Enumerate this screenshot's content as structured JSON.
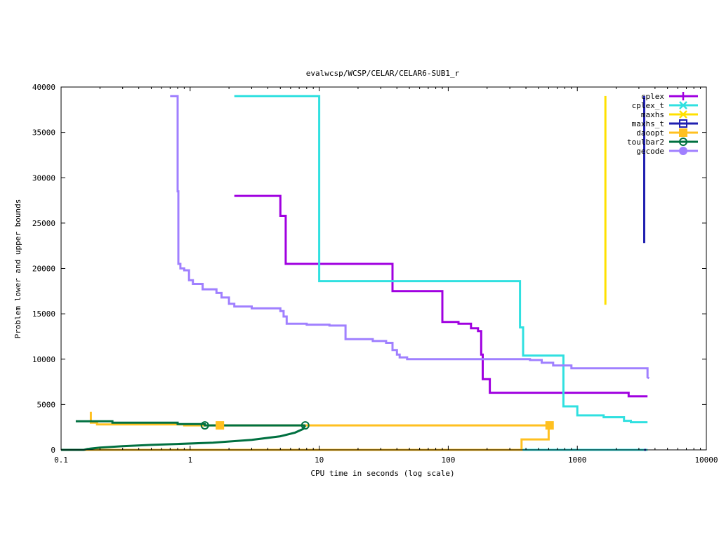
{
  "chart_data": {
    "type": "line",
    "title": "evalwcsp/WCSP/CELAR/CELAR6-SUB1_r",
    "xlabel": "CPU time in seconds (log scale)",
    "ylabel": "Problem lower and upper bounds",
    "xscale": "log",
    "xlim": [
      0.1,
      10000
    ],
    "ylim": [
      0,
      40000
    ],
    "xticks": [
      0.1,
      1,
      10,
      100,
      1000,
      10000
    ],
    "xtick_labels": [
      "0.1",
      "1",
      "10",
      "100",
      "1000",
      "10000"
    ],
    "yticks": [
      0,
      5000,
      10000,
      15000,
      20000,
      25000,
      30000,
      35000,
      40000
    ],
    "ytick_labels": [
      "0",
      "5000",
      "10000",
      "15000",
      "20000",
      "25000",
      "30000",
      "35000",
      "40000"
    ],
    "grid": false,
    "legend_position": "top-right",
    "series": [
      {
        "name": "cplex",
        "color": "#a000e0",
        "marker": "plus",
        "points": [
          [
            2.2,
            28000
          ],
          [
            5.0,
            28000
          ],
          [
            5.0,
            25800
          ],
          [
            5.5,
            25800
          ],
          [
            5.5,
            20500
          ],
          [
            37,
            20500
          ],
          [
            37,
            17500
          ],
          [
            90,
            17500
          ],
          [
            90,
            14100
          ],
          [
            120,
            14100
          ],
          [
            120,
            13900
          ],
          [
            150,
            13900
          ],
          [
            150,
            13400
          ],
          [
            170,
            13400
          ],
          [
            170,
            13100
          ],
          [
            180,
            13100
          ],
          [
            180,
            10500
          ],
          [
            185,
            10500
          ],
          [
            185,
            7800
          ],
          [
            210,
            7800
          ],
          [
            210,
            6300
          ],
          [
            2500,
            6300
          ],
          [
            2500,
            5900
          ],
          [
            3500,
            5900
          ]
        ],
        "markers": []
      },
      {
        "name": "cplex_t",
        "color": "#30e0e0",
        "marker": "cross",
        "points": [
          [
            2.2,
            39000
          ],
          [
            10,
            39000
          ],
          [
            10,
            18600
          ],
          [
            360,
            18600
          ],
          [
            360,
            13500
          ],
          [
            380,
            13500
          ],
          [
            380,
            10400
          ],
          [
            780,
            10400
          ],
          [
            780,
            4800
          ],
          [
            1000,
            4800
          ],
          [
            1000,
            3800
          ],
          [
            1600,
            3800
          ],
          [
            1600,
            3600
          ],
          [
            2300,
            3600
          ],
          [
            2300,
            3200
          ],
          [
            2600,
            3200
          ],
          [
            2600,
            3050
          ],
          [
            3500,
            3050
          ]
        ],
        "lower": [
          [
            2.2,
            0
          ],
          [
            3500,
            0
          ]
        ],
        "markers": []
      },
      {
        "name": "maxhs",
        "color": "#ffe000",
        "marker": "cross",
        "points": [
          [
            1650,
            39000
          ],
          [
            1650,
            16000
          ]
        ],
        "markers": []
      },
      {
        "name": "maxhs_t",
        "color": "#2020b0",
        "marker": "square",
        "points": [
          [
            3300,
            39000
          ],
          [
            3300,
            22800
          ]
        ],
        "lower": [
          [
            3300,
            0
          ],
          [
            3400,
            0
          ]
        ],
        "markers": []
      },
      {
        "name": "daoopt",
        "color": "#ffc020",
        "marker": "filled-square",
        "points": [
          [
            0.17,
            4200
          ],
          [
            0.17,
            3000
          ],
          [
            0.19,
            3000
          ],
          [
            0.19,
            2800
          ],
          [
            0.9,
            2800
          ],
          [
            0.9,
            2700
          ],
          [
            610,
            2700
          ]
        ],
        "lower": [
          [
            0.1,
            0
          ],
          [
            370,
            0
          ],
          [
            370,
            1150
          ],
          [
            600,
            1150
          ],
          [
            600,
            2700
          ]
        ],
        "markers": [
          [
            1.7,
            2700
          ],
          [
            610,
            2700
          ]
        ]
      },
      {
        "name": "toulbar2",
        "color": "#007040",
        "marker": "circle",
        "points": [
          [
            0.13,
            3150
          ],
          [
            0.25,
            3150
          ],
          [
            0.25,
            3000
          ],
          [
            0.8,
            3000
          ],
          [
            0.8,
            2850
          ],
          [
            1.3,
            2850
          ],
          [
            1.3,
            2700
          ],
          [
            7.8,
            2700
          ]
        ],
        "lower": [
          [
            0.1,
            0
          ],
          [
            0.15,
            0
          ],
          [
            0.16,
            100
          ],
          [
            0.2,
            250
          ],
          [
            0.3,
            400
          ],
          [
            0.5,
            550
          ],
          [
            0.8,
            650
          ],
          [
            1.5,
            800
          ],
          [
            3,
            1100
          ],
          [
            5,
            1500
          ],
          [
            6.5,
            1900
          ],
          [
            7.5,
            2300
          ],
          [
            7.8,
            2700
          ]
        ],
        "markers": [
          [
            1.3,
            2700
          ],
          [
            7.8,
            2700
          ]
        ]
      },
      {
        "name": "gecode",
        "color": "#a080ff",
        "marker": "filled-circle",
        "points": [
          [
            0.7,
            39000
          ],
          [
            0.8,
            39000
          ],
          [
            0.8,
            28500
          ],
          [
            0.81,
            28500
          ],
          [
            0.81,
            20500
          ],
          [
            0.84,
            20500
          ],
          [
            0.84,
            20000
          ],
          [
            0.9,
            20000
          ],
          [
            0.9,
            19800
          ],
          [
            0.98,
            19800
          ],
          [
            0.98,
            18700
          ],
          [
            1.05,
            18700
          ],
          [
            1.05,
            18300
          ],
          [
            1.25,
            18300
          ],
          [
            1.25,
            17700
          ],
          [
            1.6,
            17700
          ],
          [
            1.6,
            17300
          ],
          [
            1.75,
            17300
          ],
          [
            1.75,
            16800
          ],
          [
            2.0,
            16800
          ],
          [
            2.0,
            16100
          ],
          [
            2.2,
            16100
          ],
          [
            2.2,
            15800
          ],
          [
            3.0,
            15800
          ],
          [
            3.0,
            15600
          ],
          [
            5.0,
            15600
          ],
          [
            5.0,
            15300
          ],
          [
            5.3,
            15300
          ],
          [
            5.3,
            14700
          ],
          [
            5.6,
            14700
          ],
          [
            5.6,
            13900
          ],
          [
            8.0,
            13900
          ],
          [
            8.0,
            13800
          ],
          [
            12.0,
            13800
          ],
          [
            12.0,
            13700
          ],
          [
            16.0,
            13700
          ],
          [
            16.0,
            12200
          ],
          [
            26.0,
            12200
          ],
          [
            26.0,
            12000
          ],
          [
            33.0,
            12000
          ],
          [
            33.0,
            11800
          ],
          [
            37.0,
            11800
          ],
          [
            37.0,
            11000
          ],
          [
            40.0,
            11000
          ],
          [
            40.0,
            10500
          ],
          [
            42.0,
            10500
          ],
          [
            42.0,
            10200
          ],
          [
            48.0,
            10200
          ],
          [
            48.0,
            10000
          ],
          [
            430.0,
            10000
          ],
          [
            430.0,
            9900
          ],
          [
            530.0,
            9900
          ],
          [
            530.0,
            9600
          ],
          [
            650.0,
            9600
          ],
          [
            650.0,
            9300
          ],
          [
            900.0,
            9300
          ],
          [
            900.0,
            9000
          ],
          [
            3500.0,
            9000
          ],
          [
            3500.0,
            8000
          ],
          [
            3600.0,
            7900
          ]
        ],
        "markers": []
      }
    ]
  }
}
